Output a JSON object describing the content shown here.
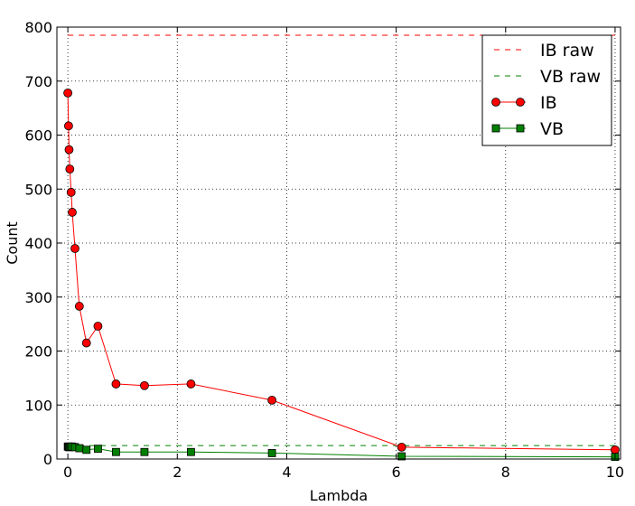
{
  "chart_data": {
    "type": "line",
    "title": "",
    "xlabel": "Lambda",
    "ylabel": "Count",
    "xlim": [
      -0.2,
      10.1
    ],
    "ylim": [
      0,
      800
    ],
    "xticks": [
      0,
      2,
      4,
      6,
      8,
      10
    ],
    "yticks": [
      0,
      100,
      200,
      300,
      400,
      500,
      600,
      700,
      800
    ],
    "grid": true,
    "legend_position": "top-right",
    "series": [
      {
        "name": "IB raw",
        "style": "dashed",
        "color": "#ff0000",
        "x": [
          0,
          10
        ],
        "y": [
          785,
          785
        ]
      },
      {
        "name": "VB raw",
        "style": "dashed",
        "color": "#008000",
        "x": [
          0,
          10
        ],
        "y": [
          25,
          25
        ]
      },
      {
        "name": "IB",
        "style": "line-circle",
        "color": "#ff0000",
        "x": [
          0.0,
          0.013,
          0.022,
          0.036,
          0.06,
          0.08,
          0.13,
          0.21,
          0.34,
          0.55,
          0.88,
          1.4,
          2.25,
          3.73,
          6.1,
          10.0
        ],
        "y": [
          678,
          617,
          573,
          537,
          494,
          457,
          390,
          283,
          215,
          246,
          139,
          136,
          139,
          109,
          22,
          17
        ]
      },
      {
        "name": "VB",
        "style": "line-square",
        "color": "#008000",
        "x": [
          0.0,
          0.013,
          0.022,
          0.036,
          0.06,
          0.08,
          0.13,
          0.21,
          0.34,
          0.55,
          0.88,
          1.4,
          2.25,
          3.73,
          6.1,
          10.0
        ],
        "y": [
          23,
          23,
          22,
          22,
          23,
          23,
          22,
          20,
          17,
          19,
          13,
          13,
          13,
          11,
          5,
          4
        ]
      }
    ]
  }
}
